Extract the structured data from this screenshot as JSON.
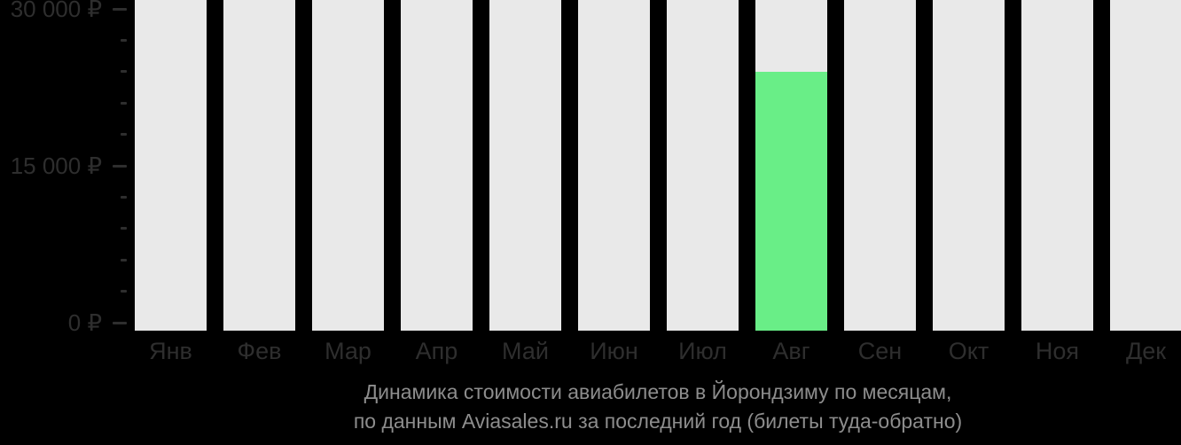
{
  "chart_data": {
    "type": "bar",
    "title": "Динамика стоимости авиабилетов в Йорондзиму по месяцам,",
    "subtitle": "по данным Aviasales.ru за последний год (билеты туда-обратно)",
    "categories": [
      "Янв",
      "Фев",
      "Мар",
      "Апр",
      "Май",
      "Июн",
      "Июл",
      "Авг",
      "Сен",
      "Окт",
      "Ноя",
      "Дек"
    ],
    "values": [
      null,
      null,
      null,
      null,
      null,
      null,
      null,
      24000,
      null,
      null,
      null,
      null
    ],
    "unit": "₽",
    "xlabel": "",
    "ylabel": "",
    "ylim": [
      0,
      30000
    ],
    "yticks": [
      {
        "value": 30000,
        "label": "30 000 ₽"
      },
      {
        "value": 15000,
        "label": "15 000 ₽"
      },
      {
        "value": 0,
        "label": "0 ₽"
      }
    ],
    "minor_tick_step": 3000,
    "grid": "off",
    "legend": "none"
  },
  "colors": {
    "background": "#000000",
    "column_background": "#e9e9e9",
    "bar_green": "#69ee87",
    "axis_text": "#2e2e2e",
    "tick_mark": "#2e2e2e",
    "caption_text": "#8d8d8d"
  }
}
